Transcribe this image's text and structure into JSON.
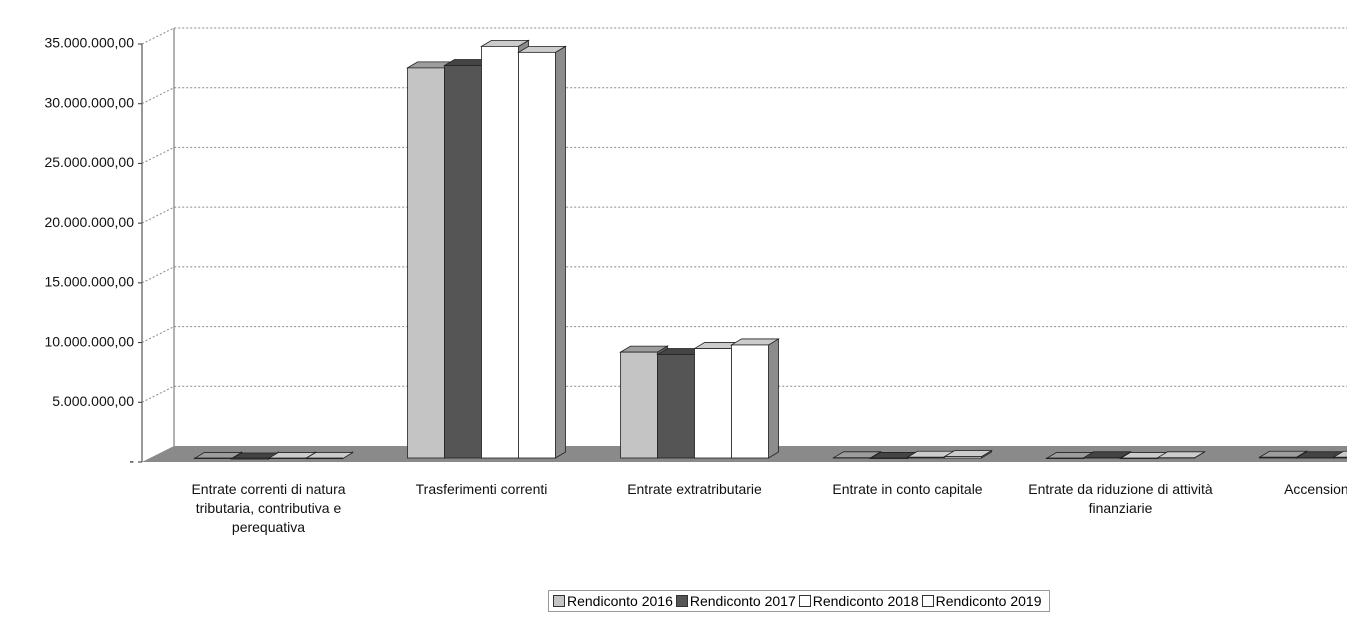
{
  "chart_data": {
    "type": "bar",
    "categories": [
      "Entrate correnti di natura tributaria, contributiva e perequativa",
      "Trasferimenti correnti",
      "Entrate extratributarie",
      "Entrate in conto capitale",
      "Entrate da riduzione di attività finanziarie",
      "Accensione di p"
    ],
    "series": [
      {
        "name": "Rendiconto 2016",
        "color": "#c4c4c4",
        "values": [
          300000,
          33000000,
          9200000,
          350000,
          300000,
          400000
        ]
      },
      {
        "name": "Rendiconto 2017",
        "color": "#555555",
        "values": [
          250000,
          33200000,
          9000000,
          300000,
          350000,
          350000
        ]
      },
      {
        "name": "Rendiconto 2018",
        "color": "#ffffff",
        "values": [
          300000,
          34800000,
          9500000,
          400000,
          300000,
          400000
        ]
      },
      {
        "name": "Rendiconto 2019",
        "color": "#ffffff",
        "values": [
          280000,
          34300000,
          9800000,
          450000,
          350000,
          450000
        ]
      }
    ],
    "ylim": [
      0,
      35000000
    ],
    "yticks": [
      {
        "value": 0,
        "label": "-"
      },
      {
        "value": 5000000,
        "label": "5.000.000,00"
      },
      {
        "value": 10000000,
        "label": "10.000.000,00"
      },
      {
        "value": 15000000,
        "label": "15.000.000,00"
      },
      {
        "value": 20000000,
        "label": "20.000.000,00"
      },
      {
        "value": 25000000,
        "label": "25.000.000,00"
      },
      {
        "value": 30000000,
        "label": "30.000.000,00"
      },
      {
        "value": 35000000,
        "label": "35.000.000,00"
      }
    ],
    "grid": true,
    "legend": "bottom"
  }
}
